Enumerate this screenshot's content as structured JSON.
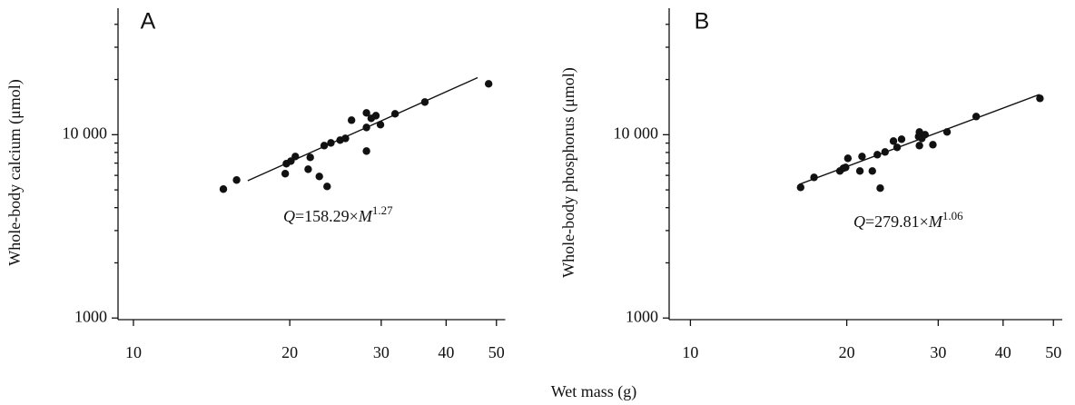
{
  "shared_xlabel": "Wet mass (g)",
  "chart_data": [
    {
      "type": "scatter",
      "panel": "A",
      "ylabel": "Whole-body calcium (μmol)",
      "color": "#111111",
      "xscale": "log",
      "yscale": "log",
      "xlim": [
        9.34,
        52
      ],
      "xticks": [
        10,
        20,
        30,
        40,
        50
      ],
      "ylim": [
        980,
        49000
      ],
      "yticks": [
        1000,
        {
          "value": 10000,
          "label": "10 000"
        }
      ],
      "yminor": [
        2000,
        3000,
        4000,
        5000,
        6000,
        7000,
        8000,
        9000,
        20000,
        30000,
        40000
      ],
      "x": [
        14.9,
        15.8,
        19.6,
        19.7,
        20.1,
        20.5,
        21.7,
        21.9,
        22.8,
        23.6,
        23.3,
        24.0,
        25.0,
        25.6,
        26.3,
        28.1,
        28.1,
        28.1,
        28.7,
        29.3,
        29.9,
        31.9,
        36.4,
        48.3
      ],
      "values": [
        5050,
        5660,
        6130,
        6950,
        7180,
        7610,
        6480,
        7520,
        5920,
        5220,
        8720,
        9020,
        9340,
        9550,
        12000,
        10950,
        13150,
        8140,
        12280,
        12700,
        11340,
        13000,
        15070,
        18940
      ],
      "fit": {
        "a": 158.29,
        "b": 1.27,
        "xrange": [
          16.6,
          46
        ]
      },
      "fit_label": [
        "Q",
        "=158.29×",
        "M",
        "1.27"
      ]
    },
    {
      "type": "scatter",
      "panel": "B",
      "ylabel": "Whole-body phosphorus (μmol)",
      "color": "#111111",
      "xscale": "log",
      "yscale": "log",
      "xlim": [
        9.1,
        52
      ],
      "xticks": [
        10,
        20,
        30,
        40,
        50
      ],
      "ylim": [
        980,
        49000
      ],
      "yticks": [
        1000,
        {
          "value": 10000,
          "label": "10 000"
        }
      ],
      "yminor": [
        2000,
        3000,
        4000,
        5000,
        6000,
        7000,
        8000,
        9000,
        20000,
        30000,
        40000
      ],
      "x": [
        16.3,
        17.3,
        19.4,
        19.7,
        19.9,
        20.1,
        21.2,
        21.4,
        22.4,
        22.9,
        23.2,
        23.7,
        24.6,
        25.0,
        25.5,
        27.5,
        27.6,
        27.6,
        27.9,
        28.3,
        29.3,
        31.2,
        35.5,
        47.1
      ],
      "values": [
        5160,
        5850,
        6340,
        6560,
        6630,
        7430,
        6340,
        7610,
        6340,
        7780,
        5110,
        8050,
        9230,
        8530,
        9450,
        9770,
        10350,
        8720,
        9550,
        10000,
        8820,
        10350,
        12560,
        15780
      ],
      "fit": {
        "a": 279.81,
        "b": 1.06,
        "xrange": [
          16.2,
          47
        ]
      },
      "fit_label": [
        "Q",
        "=279.81×",
        "M",
        "1.06"
      ]
    }
  ]
}
